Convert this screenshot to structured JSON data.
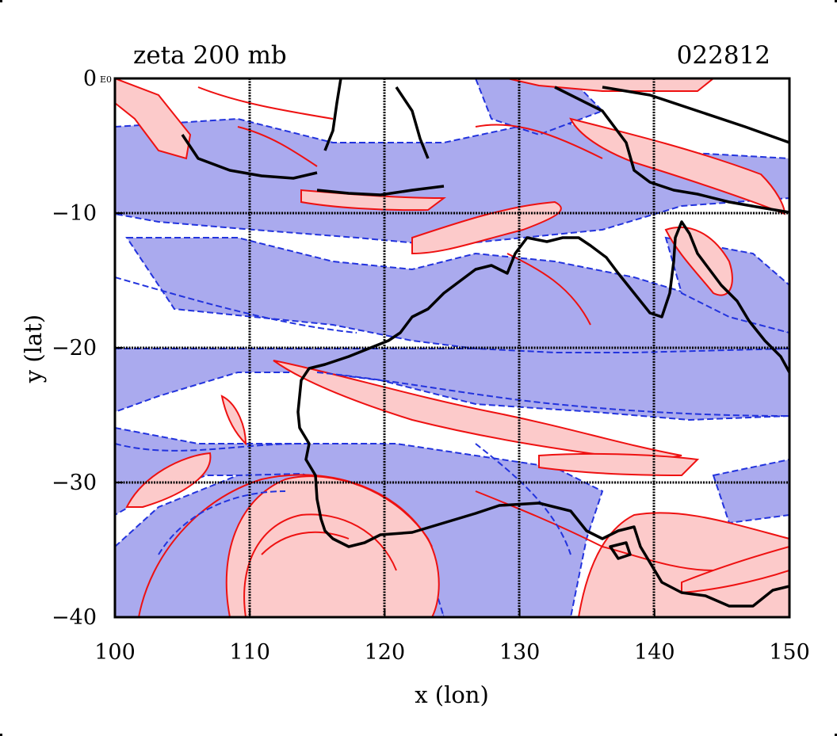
{
  "title": "zeta 200 mb",
  "date_code": "022812",
  "small_origin_label": "E0",
  "colors": {
    "positive_fill": "#fccaca",
    "positive_line": "#ee1111",
    "negative_fill": "#aaaaee",
    "negative_line": "#2233dd",
    "coast": "#000000",
    "grid": "#000000"
  },
  "chart_data": {
    "type": "heatmap",
    "title": "zeta 200 mb",
    "xlabel": "x (lon)",
    "ylabel": "y (lat)",
    "xlim": [
      100,
      150
    ],
    "ylim": [
      -40,
      0
    ],
    "x_ticks": [
      100,
      110,
      120,
      130,
      140,
      150
    ],
    "y_ticks": [
      0,
      -10,
      -20,
      -30,
      -40
    ],
    "grid": true,
    "legend": "none",
    "fields": [
      {
        "sign": "positive",
        "fill": "#fccaca",
        "line": "#ee1111",
        "style": "solid"
      },
      {
        "sign": "negative",
        "fill": "#aaaaee",
        "line": "#2233dd",
        "style": "dashed"
      }
    ]
  }
}
